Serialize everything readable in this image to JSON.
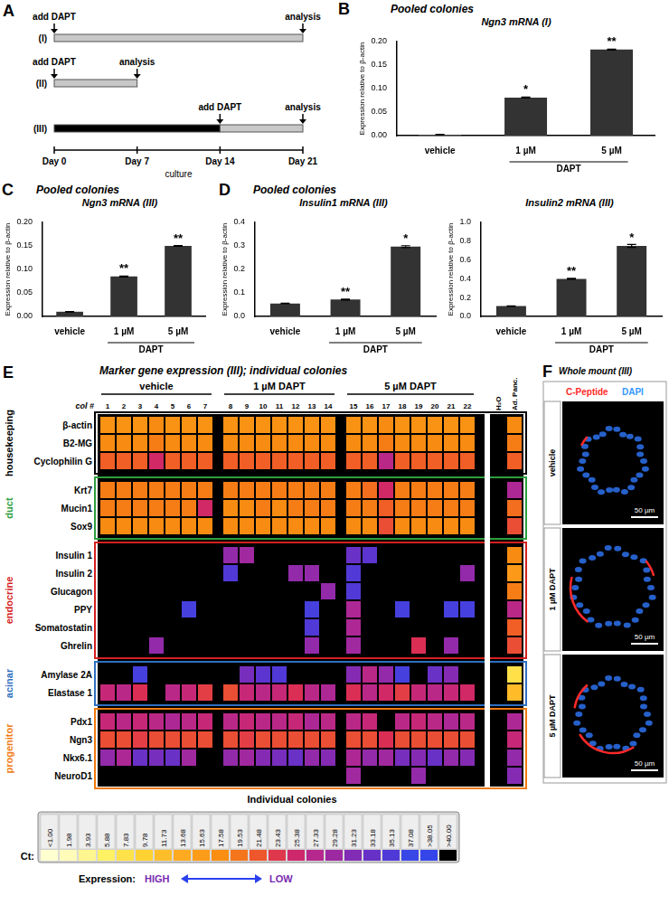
{
  "panel_a": {
    "panel_letter": "A",
    "x_label": "culture",
    "xlim": [
      0,
      21
    ],
    "xticks": [
      {
        "value": 0,
        "label": "Day 0"
      },
      {
        "value": 7,
        "label": "Day 7"
      },
      {
        "value": 14,
        "label": "Day 14"
      },
      {
        "value": 21,
        "label": "Day 21"
      }
    ],
    "rows": [
      {
        "label": "(I)",
        "segments": [
          {
            "from": 0,
            "to": 21,
            "color": "#c8c8c8"
          }
        ],
        "events": [
          {
            "day": 0,
            "text": "add DAPT"
          },
          {
            "day": 21,
            "text": "analysis"
          }
        ]
      },
      {
        "label": "(II)",
        "segments": [
          {
            "from": 0,
            "to": 7,
            "color": "#c8c8c8"
          }
        ],
        "events": [
          {
            "day": 0,
            "text": "add DAPT"
          },
          {
            "day": 7,
            "text": "analysis"
          }
        ]
      },
      {
        "label": "(III)",
        "segments": [
          {
            "from": 0,
            "to": 14,
            "color": "#000000"
          },
          {
            "from": 14,
            "to": 21,
            "color": "#c8c8c8"
          }
        ],
        "events": [
          {
            "day": 14,
            "text": "add DAPT"
          },
          {
            "day": 21,
            "text": "analysis"
          }
        ]
      }
    ]
  },
  "chart_data": [
    {
      "panel_letter": "B",
      "type": "bar",
      "title": "Pooled colonies",
      "subtitle": "Ngn3 mRNA (I)",
      "categories": [
        "vehicle",
        "1 µM",
        "5 µM"
      ],
      "group": {
        "label": "DAPT",
        "members": [
          "1 µM",
          "5 µM"
        ]
      },
      "values": [
        0.002,
        0.081,
        0.183
      ],
      "errors": [
        0.0005,
        0.001,
        0.001
      ],
      "significance": [
        null,
        "*",
        "**"
      ],
      "color": "#333333",
      "y_label": "Expression relative to β-actin",
      "ylim": [
        0,
        0.2
      ],
      "yticks": [
        {
          "value": 0,
          "label": "0.00"
        },
        0.05,
        {
          "value": 0.1,
          "label": "0.10"
        },
        0.15,
        {
          "value": 0.2,
          "label": "0.20"
        }
      ],
      "grid": false
    },
    {
      "panel_letter": "C",
      "type": "bar",
      "title": "Pooled colonies",
      "subtitle": "Ngn3 mRNA (III)",
      "categories": [
        "vehicle",
        "1 µM",
        "5 µM"
      ],
      "group": {
        "label": "DAPT",
        "members": [
          "1 µM",
          "5 µM"
        ]
      },
      "values": [
        0.01,
        0.085,
        0.15
      ],
      "errors": [
        0.0005,
        0.001,
        0.001
      ],
      "significance": [
        null,
        "**",
        "**"
      ],
      "color": "#333333",
      "y_label": "Expression relative to β-actin",
      "ylim": [
        0,
        0.2
      ],
      "yticks": [
        {
          "value": 0,
          "label": "0.00"
        },
        0.05,
        {
          "value": 0.1,
          "label": "0.10"
        },
        0.15,
        {
          "value": 0.2,
          "label": "0.20"
        }
      ],
      "grid": false
    },
    {
      "panel_letter": "D",
      "type": "bar",
      "title": "Pooled colonies",
      "subtitle": "Insulin1 mRNA (III)",
      "categories": [
        "vehicle",
        "1 µM",
        "5 µM"
      ],
      "group": {
        "label": "DAPT",
        "members": [
          "1 µM",
          "5 µM"
        ]
      },
      "values": [
        0.055,
        0.072,
        0.297
      ],
      "errors": [
        0.001,
        0.002,
        0.004
      ],
      "significance": [
        null,
        "**",
        "*"
      ],
      "color": "#333333",
      "y_label": "Expression relative to β-actin",
      "ylim": [
        0,
        0.4
      ],
      "yticks": [
        {
          "value": 0,
          "label": "0.0"
        },
        0.1,
        0.2,
        0.3,
        0.4
      ],
      "grid": false
    },
    {
      "type": "bar",
      "subtitle": "Insulin2 mRNA (III)",
      "categories": [
        "vehicle",
        "1 µM",
        "5 µM"
      ],
      "group": {
        "label": "DAPT",
        "members": [
          "1 µM",
          "5 µM"
        ]
      },
      "values": [
        0.11,
        0.4,
        0.75
      ],
      "errors": [
        0.003,
        0.005,
        0.015
      ],
      "significance": [
        null,
        "**",
        "*"
      ],
      "color": "#333333",
      "y_label": "Expression relative to β-actin",
      "ylim": [
        0,
        1
      ],
      "yticks": [
        {
          "value": 0,
          "label": "0.0"
        },
        0.2,
        0.4,
        0.6,
        0.8,
        {
          "value": 1,
          "label": "1.0"
        }
      ],
      "grid": false
    }
  ],
  "panel_e": {
    "panel_letter": "E",
    "title": "Marker gene expression (III); individual colonies",
    "col_label": "col #",
    "groups": [
      {
        "label": "vehicle",
        "columns": [
          1,
          2,
          3,
          4,
          5,
          6,
          7
        ]
      },
      {
        "label": "1 µM DAPT",
        "columns": [
          8,
          9,
          10,
          11,
          12,
          13,
          14
        ]
      },
      {
        "label": "5 µM DAPT",
        "columns": [
          15,
          16,
          17,
          18,
          19,
          20,
          21,
          22
        ]
      }
    ],
    "controls": [
      "H₂O",
      "Ad. Panc."
    ],
    "x_label": "Individual colonies",
    "categories": [
      {
        "label": "housekeeping",
        "color": "#000000",
        "genes": [
          {
            "name": "β-actin",
            "cells": [
              17,
              17,
              17,
              18,
              17,
              17,
              17,
              17,
              17,
              17,
              17,
              17,
              17,
              17,
              17,
              17,
              18,
              17,
              17,
              17,
              17,
              17,
              null,
              18
            ]
          },
          {
            "name": "B2-MG",
            "cells": [
              18,
              18,
              18,
              19,
              18,
              18,
              18,
              18,
              18,
              18,
              18,
              18,
              18,
              18,
              18,
              18,
              19,
              18,
              18,
              18,
              18,
              18,
              null,
              19
            ]
          },
          {
            "name": "Cyclophilin G",
            "cells": [
              21,
              21,
              21,
              25,
              21,
              21,
              21,
              21,
              21,
              21,
              21,
              21,
              21,
              21,
              21,
              21,
              27,
              21,
              21,
              21,
              21,
              21,
              null,
              21
            ]
          }
        ]
      },
      {
        "label": "duct",
        "color": "#2e9e3e",
        "genes": [
          {
            "name": "Krt7",
            "cells": [
              19,
              19,
              19,
              19,
              19,
              19,
              19,
              19,
              19,
              19,
              19,
              19,
              19,
              19,
              19,
              20,
              25,
              19,
              19,
              19,
              19,
              19,
              null,
              28
            ]
          },
          {
            "name": "Mucin1",
            "cells": [
              19,
              19,
              19,
              19,
              19,
              19,
              25,
              18,
              18,
              19,
              18,
              19,
              19,
              19,
              19,
              19,
              21,
              19,
              19,
              19,
              19,
              19,
              null,
              20
            ]
          },
          {
            "name": "Sox9",
            "cells": [
              18,
              18,
              18,
              18,
              18,
              18,
              18,
              18,
              18,
              18,
              18,
              18,
              18,
              18,
              18,
              18,
              22,
              18,
              18,
              18,
              18,
              18,
              null,
              22
            ]
          }
        ]
      },
      {
        "label": "endocrine",
        "color": "#d42020",
        "genes": [
          {
            "name": "Insulin 1",
            "cells": [
              null,
              null,
              null,
              null,
              null,
              null,
              null,
              30,
              29,
              null,
              null,
              null,
              null,
              null,
              33,
              34,
              null,
              null,
              null,
              null,
              null,
              null,
              null,
              18
            ]
          },
          {
            "name": "Insulin 2",
            "cells": [
              null,
              null,
              null,
              null,
              null,
              null,
              null,
              35,
              null,
              null,
              null,
              30,
              30,
              null,
              35,
              null,
              null,
              null,
              null,
              null,
              null,
              30,
              null,
              16
            ]
          },
          {
            "name": "Glucagon",
            "cells": [
              null,
              null,
              null,
              null,
              null,
              null,
              null,
              null,
              null,
              null,
              null,
              null,
              null,
              30,
              35,
              null,
              null,
              null,
              null,
              null,
              null,
              null,
              null,
              19
            ]
          },
          {
            "name": "PPY",
            "cells": [
              null,
              null,
              null,
              null,
              null,
              36,
              null,
              null,
              null,
              null,
              null,
              null,
              36,
              null,
              28,
              null,
              null,
              36,
              null,
              null,
              36,
              36,
              null,
              27
            ]
          },
          {
            "name": "Somatostatin",
            "cells": [
              null,
              null,
              null,
              null,
              null,
              null,
              null,
              null,
              null,
              null,
              null,
              null,
              35,
              null,
              28,
              null,
              null,
              null,
              null,
              null,
              null,
              null,
              null,
              21
            ]
          },
          {
            "name": "Ghrelin",
            "cells": [
              null,
              null,
              null,
              30,
              null,
              null,
              null,
              null,
              null,
              null,
              null,
              null,
              30,
              null,
              29,
              null,
              null,
              null,
              24,
              null,
              30,
              null,
              null,
              22
            ]
          }
        ]
      },
      {
        "label": "acinar",
        "color": "#2f6fc0",
        "genes": [
          {
            "name": "Amylase 2A",
            "cells": [
              null,
              null,
              36,
              null,
              null,
              null,
              null,
              null,
              32,
              34,
              35,
              null,
              null,
              null,
              31,
              27,
              30,
              36,
              null,
              33,
              31,
              null,
              null,
              8
            ]
          },
          {
            "name": "Elastase 1",
            "cells": [
              26,
              27,
              24,
              null,
              27,
              26,
              23,
              22,
              26,
              27,
              26,
              24,
              27,
              28,
              24,
              27,
              25,
              23,
              26,
              27,
              26,
              25,
              null,
              12
            ]
          }
        ]
      },
      {
        "label": "progenitor",
        "color": "#f07a10",
        "genes": [
          {
            "name": "Pdx1",
            "cells": [
              26,
              27,
              26,
              27,
              28,
              27,
              26,
              27,
              26,
              27,
              27,
              26,
              28,
              27,
              27,
              26,
              null,
              27,
              26,
              27,
              28,
              27,
              null,
              28
            ]
          },
          {
            "name": "Ngn3",
            "cells": [
              22,
              22,
              23,
              22,
              22,
              22,
              22,
              22,
              23,
              22,
              22,
              22,
              22,
              22,
              22,
              22,
              24,
              22,
              22,
              22,
              22,
              22,
              null,
              26
            ]
          },
          {
            "name": "Nkx6.1",
            "cells": [
              30,
              28,
              33,
              32,
              33,
              29,
              null,
              30,
              29,
              31,
              32,
              33,
              30,
              31,
              28,
              30,
              29,
              32,
              31,
              33,
              30,
              31,
              null,
              30
            ]
          },
          {
            "name": "NeuroD1",
            "cells": [
              null,
              null,
              null,
              null,
              null,
              null,
              null,
              null,
              null,
              null,
              null,
              null,
              null,
              null,
              29,
              null,
              null,
              null,
              30,
              null,
              null,
              null,
              null,
              31
            ]
          }
        ]
      }
    ],
    "color_bar": {
      "title": "Ct:",
      "range": [
        1,
        40
      ],
      "ticks": [
        {
          "value": 1,
          "label": "<1.00"
        },
        1.98,
        3.93,
        5.88,
        7.83,
        9.78,
        11.73,
        13.68,
        15.63,
        17.58,
        19.53,
        21.48,
        23.43,
        25.38,
        27.33,
        29.28,
        31.23,
        33.18,
        35.13,
        37.08,
        {
          "value": 38.05,
          "label": ">38.05"
        },
        {
          "value": 40,
          "label": ">40.00"
        }
      ],
      "legend_label": "Expression:",
      "high_label": "HIGH",
      "low_label": "LOW"
    }
  },
  "panel_f": {
    "panel_letter": "F",
    "title": "Whole mount (III)",
    "stains": [
      {
        "label": "C-Peptide",
        "color": "#ff2a2a"
      },
      {
        "label": "DAPI",
        "color": "#3399ff"
      }
    ],
    "images": [
      {
        "label": "vehicle",
        "scale_bar": "50 µm"
      },
      {
        "label": "1 µM DAPT",
        "scale_bar": "50 µm"
      },
      {
        "label": "5 µM DAPT",
        "scale_bar": "50 µm"
      }
    ]
  }
}
